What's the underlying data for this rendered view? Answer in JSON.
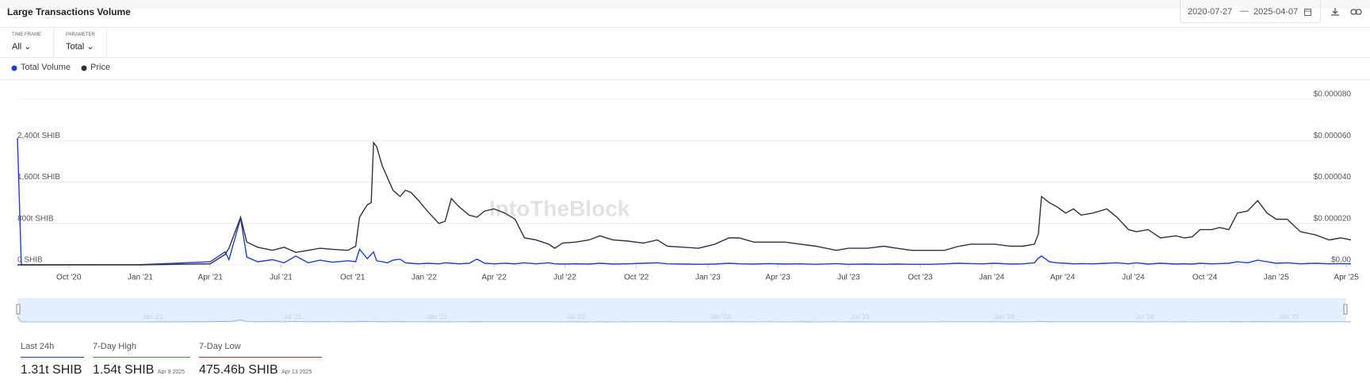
{
  "header": {
    "title": "Large Transactions Volume",
    "date_from": "2020-07-27",
    "date_sep": "—",
    "date_to": "2025-04-07"
  },
  "controls": [
    {
      "label": "TIME FRAME",
      "value": "All"
    },
    {
      "label": "PARAMETER",
      "value": "Total"
    }
  ],
  "watermark": "IntoTheBlock",
  "stats": [
    {
      "label": "Last 24h",
      "value": "1.31t SHIB"
    },
    {
      "label": "7-Day High",
      "value": "1.54t SHIB",
      "date": "Apr 9 2025"
    },
    {
      "label": "7-Day Low",
      "value": "475.46b SHIB",
      "date": "Apr 13 2025"
    }
  ],
  "chart_data": {
    "type": "line",
    "grid": true,
    "x": [
      "2020-07-27",
      "2020-08-01",
      "2021-01-01",
      "2021-04-01",
      "2021-04-20",
      "2021-04-25",
      "2021-05-10",
      "2021-05-18",
      "2021-06-01",
      "2021-06-20",
      "2021-07-05",
      "2021-07-20",
      "2021-08-05",
      "2021-08-20",
      "2021-09-05",
      "2021-09-25",
      "2021-10-05",
      "2021-10-10",
      "2021-10-20",
      "2021-10-25",
      "2021-10-28",
      "2021-11-01",
      "2021-11-08",
      "2021-11-15",
      "2021-11-22",
      "2021-12-01",
      "2021-12-08",
      "2021-12-15",
      "2021-12-25",
      "2022-01-05",
      "2022-01-20",
      "2022-01-28",
      "2022-02-05",
      "2022-02-15",
      "2022-02-28",
      "2022-03-10",
      "2022-03-20",
      "2022-04-01",
      "2022-04-15",
      "2022-04-28",
      "2022-05-10",
      "2022-05-25",
      "2022-06-10",
      "2022-06-18",
      "2022-06-28",
      "2022-07-15",
      "2022-08-01",
      "2022-08-15",
      "2022-09-01",
      "2022-09-20",
      "2022-10-10",
      "2022-10-28",
      "2022-11-10",
      "2022-12-01",
      "2022-12-20",
      "2023-01-10",
      "2023-01-28",
      "2023-02-10",
      "2023-03-01",
      "2023-03-20",
      "2023-04-10",
      "2023-04-30",
      "2023-05-20",
      "2023-06-15",
      "2023-07-01",
      "2023-07-25",
      "2023-08-15",
      "2023-09-01",
      "2023-09-20",
      "2023-10-15",
      "2023-11-01",
      "2023-11-20",
      "2023-12-05",
      "2023-12-20",
      "2024-01-05",
      "2024-01-25",
      "2024-02-10",
      "2024-02-25",
      "2024-03-01",
      "2024-03-05",
      "2024-03-15",
      "2024-03-25",
      "2024-04-05",
      "2024-04-15",
      "2024-04-25",
      "2024-05-10",
      "2024-05-28",
      "2024-06-10",
      "2024-06-25",
      "2024-07-05",
      "2024-07-20",
      "2024-08-05",
      "2024-08-25",
      "2024-09-05",
      "2024-09-15",
      "2024-09-25",
      "2024-10-10",
      "2024-10-20",
      "2024-11-01",
      "2024-11-12",
      "2024-11-25",
      "2024-12-08",
      "2024-12-20",
      "2025-01-01",
      "2025-01-15",
      "2025-02-01",
      "2025-02-20",
      "2025-03-10",
      "2025-03-25",
      "2025-04-07"
    ],
    "xlim": [
      "2020-07-27",
      "2025-04-07"
    ],
    "xticks": [
      {
        "value": "2020-10-01",
        "label": "Oct '20"
      },
      {
        "value": "2021-01-01",
        "label": "Jan '21"
      },
      {
        "value": "2021-04-01",
        "label": "Apr '21"
      },
      {
        "value": "2021-07-01",
        "label": "Jul '21"
      },
      {
        "value": "2021-10-01",
        "label": "Oct '21"
      },
      {
        "value": "2022-01-01",
        "label": "Jan '22"
      },
      {
        "value": "2022-04-01",
        "label": "Apr '22"
      },
      {
        "value": "2022-07-01",
        "label": "Jul '22"
      },
      {
        "value": "2022-10-01",
        "label": "Oct '22"
      },
      {
        "value": "2023-01-01",
        "label": "Jan '23"
      },
      {
        "value": "2023-04-01",
        "label": "Apr '23"
      },
      {
        "value": "2023-07-01",
        "label": "Jul '23"
      },
      {
        "value": "2023-10-01",
        "label": "Oct '23"
      },
      {
        "value": "2024-01-01",
        "label": "Jan '24"
      },
      {
        "value": "2024-04-01",
        "label": "Apr '24"
      },
      {
        "value": "2024-07-01",
        "label": "Jul '24"
      },
      {
        "value": "2024-10-01",
        "label": "Oct '24"
      },
      {
        "value": "2025-01-01",
        "label": "Jan '25"
      },
      {
        "value": "2025-04-01",
        "label": "Apr '25"
      }
    ],
    "ylim": [
      0,
      3200
    ],
    "yticks": [
      {
        "value": 0,
        "label": "0 SHIB"
      },
      {
        "value": 800,
        "label": "800t SHIB"
      },
      {
        "value": 1600,
        "label": "1,600t SHIB"
      },
      {
        "value": 2400,
        "label": "2,400t SHIB"
      }
    ],
    "y2lim": [
      0,
      8e-05
    ],
    "y2ticks": [
      {
        "value": 0,
        "label": "$0.00"
      },
      {
        "value": 2e-05,
        "label": "$0.000020"
      },
      {
        "value": 4e-05,
        "label": "$0.000040"
      },
      {
        "value": 6e-05,
        "label": "$0.000060"
      },
      {
        "value": 8e-05,
        "label": "$0.000080"
      }
    ],
    "series": [
      {
        "name": "Total Volume",
        "color": "#1a3fd6",
        "values": [
          2450,
          0,
          5,
          60,
          250,
          100,
          900,
          150,
          60,
          100,
          40,
          170,
          40,
          90,
          50,
          80,
          60,
          300,
          120,
          200,
          250,
          80,
          60,
          40,
          90,
          110,
          40,
          30,
          20,
          30,
          20,
          40,
          30,
          20,
          30,
          110,
          30,
          20,
          30,
          20,
          40,
          20,
          40,
          20,
          15,
          20,
          15,
          30,
          15,
          20,
          30,
          40,
          20,
          15,
          10,
          15,
          30,
          20,
          15,
          25,
          15,
          20,
          10,
          25,
          10,
          15,
          10,
          15,
          10,
          10,
          20,
          30,
          25,
          20,
          30,
          15,
          20,
          40,
          130,
          170,
          60,
          40,
          30,
          20,
          25,
          20,
          30,
          40,
          20,
          40,
          15,
          30,
          15,
          20,
          15,
          30,
          20,
          25,
          30,
          60,
          40,
          90,
          60,
          30,
          40,
          20,
          30,
          20,
          25,
          20
        ]
      },
      {
        "name": "Price",
        "color": "#333333",
        "axis": "y2",
        "values": [
          0,
          0,
          0,
          5e-07,
          5e-06,
          8e-06,
          2.3e-05,
          1.1e-05,
          8.5e-06,
          7e-06,
          8.5e-06,
          6e-06,
          7e-06,
          8e-06,
          7.5e-06,
          7e-06,
          9e-06,
          2.3e-05,
          2.9e-05,
          3e-05,
          5.9e-05,
          5.7e-05,
          4.8e-05,
          4.2e-05,
          3.6e-05,
          3.3e-05,
          3.6e-05,
          3.5e-05,
          3.1e-05,
          2.6e-05,
          2e-05,
          2.1e-05,
          3.2e-05,
          2.8e-05,
          2.4e-05,
          2.3e-05,
          2.6e-05,
          2.7e-05,
          2.5e-05,
          2.2e-05,
          1.3e-05,
          1.2e-05,
          1e-05,
          8e-06,
          1.05e-05,
          1.1e-05,
          1.2e-05,
          1.4e-05,
          1.2e-05,
          1.15e-05,
          1.05e-05,
          1.2e-05,
          9e-06,
          8.5e-06,
          8e-06,
          1e-05,
          1.3e-05,
          1.3e-05,
          1.1e-05,
          1.1e-05,
          1.1e-05,
          1e-05,
          9e-06,
          7e-06,
          8e-06,
          8e-06,
          9e-06,
          8e-06,
          7e-06,
          7e-06,
          7e-06,
          9e-06,
          1e-05,
          1e-05,
          1e-05,
          9e-06,
          9e-06,
          1e-05,
          1.5e-05,
          3.3e-05,
          3e-05,
          2.8e-05,
          2.5e-05,
          2.7e-05,
          2.4e-05,
          2.5e-05,
          2.7e-05,
          2.3e-05,
          1.7e-05,
          1.6e-05,
          1.7e-05,
          1.3e-05,
          1.4e-05,
          1.3e-05,
          1.35e-05,
          1.7e-05,
          1.7e-05,
          1.8e-05,
          1.7e-05,
          2.5e-05,
          2.6e-05,
          3.1e-05,
          2.5e-05,
          2.2e-05,
          2.2e-05,
          1.6e-05,
          1.45e-05,
          1.2e-05,
          1.3e-05,
          1.2e-05
        ]
      }
    ]
  }
}
